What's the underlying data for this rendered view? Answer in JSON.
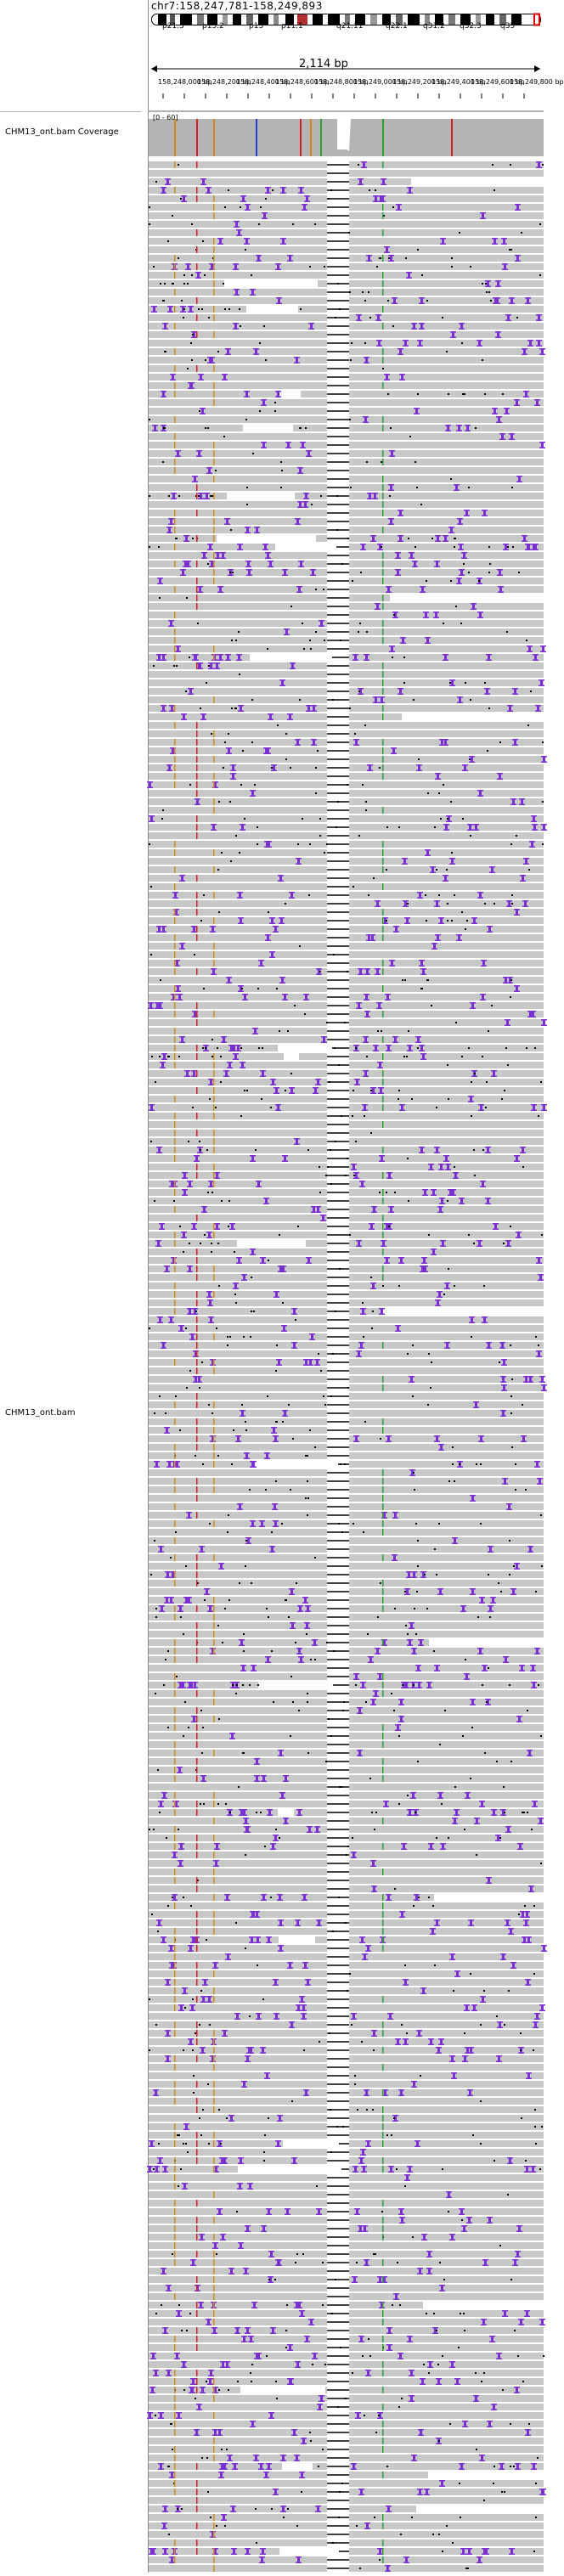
{
  "locus": "chr7:158,247,781-158,249,893",
  "span_label": "2,114 bp",
  "coverage_range": "[0 - 60]",
  "tracks": [
    {
      "name": "CHM13_ont.bam Coverage"
    },
    {
      "name": "CHM13_ont.bam"
    }
  ],
  "cytobands": [
    "p21.3",
    "p15.2",
    "p13",
    "p11.1",
    "q21.11",
    "q22.1",
    "q31.2",
    "q32.3",
    "q35"
  ],
  "ruler_ticks": [
    "158,248,000 bp",
    "158,248,200 bp",
    "158,248,400 bp",
    "158,248,600 bp",
    "158,248,800 bp",
    "158,249,000 bp",
    "158,249,200 bp",
    "158,249,400 bp",
    "158,249,600 bp",
    "158,249,800 bp"
  ],
  "colors": {
    "read": "#c8c8c8",
    "insertion": "#7b2fd0",
    "mismatch_A": "#2ca02c",
    "mismatch_C": "#1f3fd0",
    "mismatch_G": "#d08a1a",
    "mismatch_T": "#d0201f",
    "deletion": "#000000",
    "coverage": "#b4b4b4"
  },
  "icons": {
    "range_arrow_left": "arrow-left-icon",
    "range_arrow_right": "arrow-right-icon"
  }
}
